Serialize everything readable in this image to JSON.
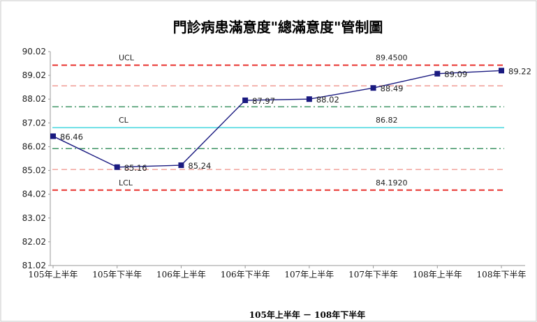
{
  "chart_data": {
    "type": "line",
    "title": "門診病患滿意度\"總滿意度\"管制圖",
    "xlabel": "105年上半年 － 108年下半年",
    "ylabel": "",
    "ylim": [
      81.02,
      90.02
    ],
    "yticks": [
      "90.02",
      "89.02",
      "88.02",
      "87.02",
      "86.02",
      "85.02",
      "84.02",
      "83.02",
      "82.02",
      "81.02"
    ],
    "categories": [
      "105年上半年",
      "105年下半年",
      "106年上半年",
      "106年下半年",
      "107年上半年",
      "107年下半年",
      "108年上半年",
      "108年下半年"
    ],
    "series": [
      {
        "values": [
          86.46,
          85.16,
          85.24,
          87.97,
          88.02,
          88.49,
          89.09,
          89.22
        ],
        "labels": [
          "86.46",
          "85.16",
          "85.24",
          "87.97",
          "88.02",
          "88.49",
          "89.09",
          "89.22"
        ],
        "color": "#1a1a80"
      }
    ],
    "control_lines": [
      {
        "name": "UCL",
        "value": 89.45,
        "value_label": "89.4500",
        "color": "#e8302c",
        "style": "dashed"
      },
      {
        "name": "CL",
        "value": 86.82,
        "value_label": "86.82",
        "color": "#6fe0e6",
        "style": "solid"
      },
      {
        "name": "LCL",
        "value": 84.192,
        "value_label": "84.1920",
        "color": "#e8302c",
        "style": "dashed"
      },
      {
        "name": "",
        "value": 88.58,
        "color": "#f19a92",
        "style": "dashed"
      },
      {
        "name": "",
        "value": 87.7,
        "color": "#2e8b57",
        "style": "dashdot"
      },
      {
        "name": "",
        "value": 85.94,
        "color": "#2e8b57",
        "style": "dashdot"
      },
      {
        "name": "",
        "value": 85.06,
        "color": "#f19a92",
        "style": "dashed"
      }
    ],
    "grid": false,
    "legend": "none"
  }
}
